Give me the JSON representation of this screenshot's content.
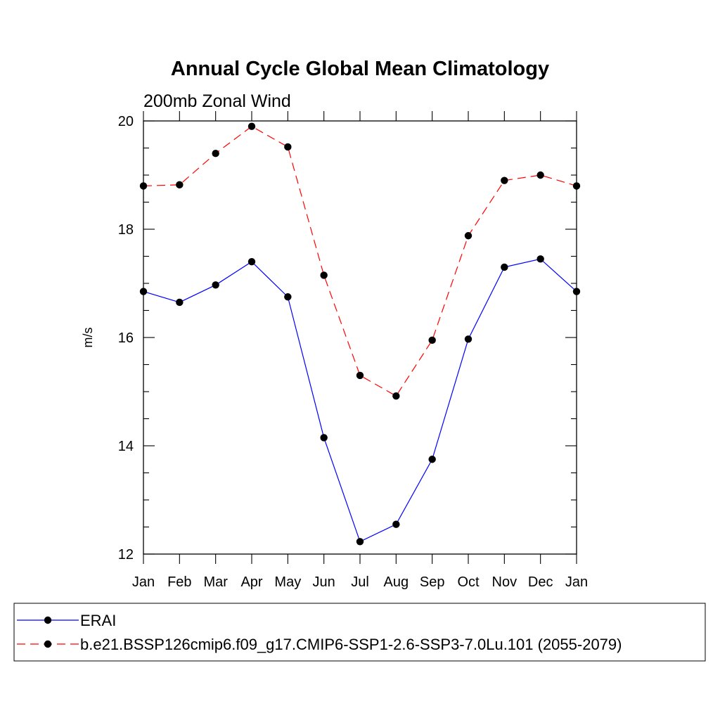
{
  "chart_data": {
    "type": "line",
    "title": "Annual Cycle Global Mean Climatology",
    "subtitle": "200mb Zonal Wind",
    "ylabel": "m/s",
    "xlabel": "",
    "categories": [
      "Jan",
      "Feb",
      "Mar",
      "Apr",
      "May",
      "Jun",
      "Jul",
      "Aug",
      "Sep",
      "Oct",
      "Nov",
      "Dec",
      "Jan"
    ],
    "ylim": [
      12,
      20
    ],
    "yticks": [
      12,
      14,
      16,
      18,
      20
    ],
    "y_minor_step": 0.5,
    "grid": false,
    "legend_placement": "bottom",
    "series": [
      {
        "name": "ERAI",
        "color": "#0000ff",
        "dash": "solid",
        "marker": "filled-circle",
        "values": [
          16.85,
          16.65,
          16.97,
          17.4,
          16.75,
          14.15,
          12.23,
          12.55,
          13.75,
          15.97,
          17.3,
          17.45,
          16.85
        ]
      },
      {
        "name": "b.e21.BSSP126cmip6.f09_g17.CMIP6-SSP1-2.6-SSP3-7.0Lu.101 (2055-2079)",
        "color": "#ff0000",
        "dash": "dashed",
        "marker": "filled-circle",
        "values": [
          18.8,
          18.82,
          19.4,
          19.9,
          19.52,
          17.15,
          15.3,
          14.92,
          15.95,
          17.88,
          18.9,
          19.0,
          18.8
        ]
      }
    ]
  }
}
